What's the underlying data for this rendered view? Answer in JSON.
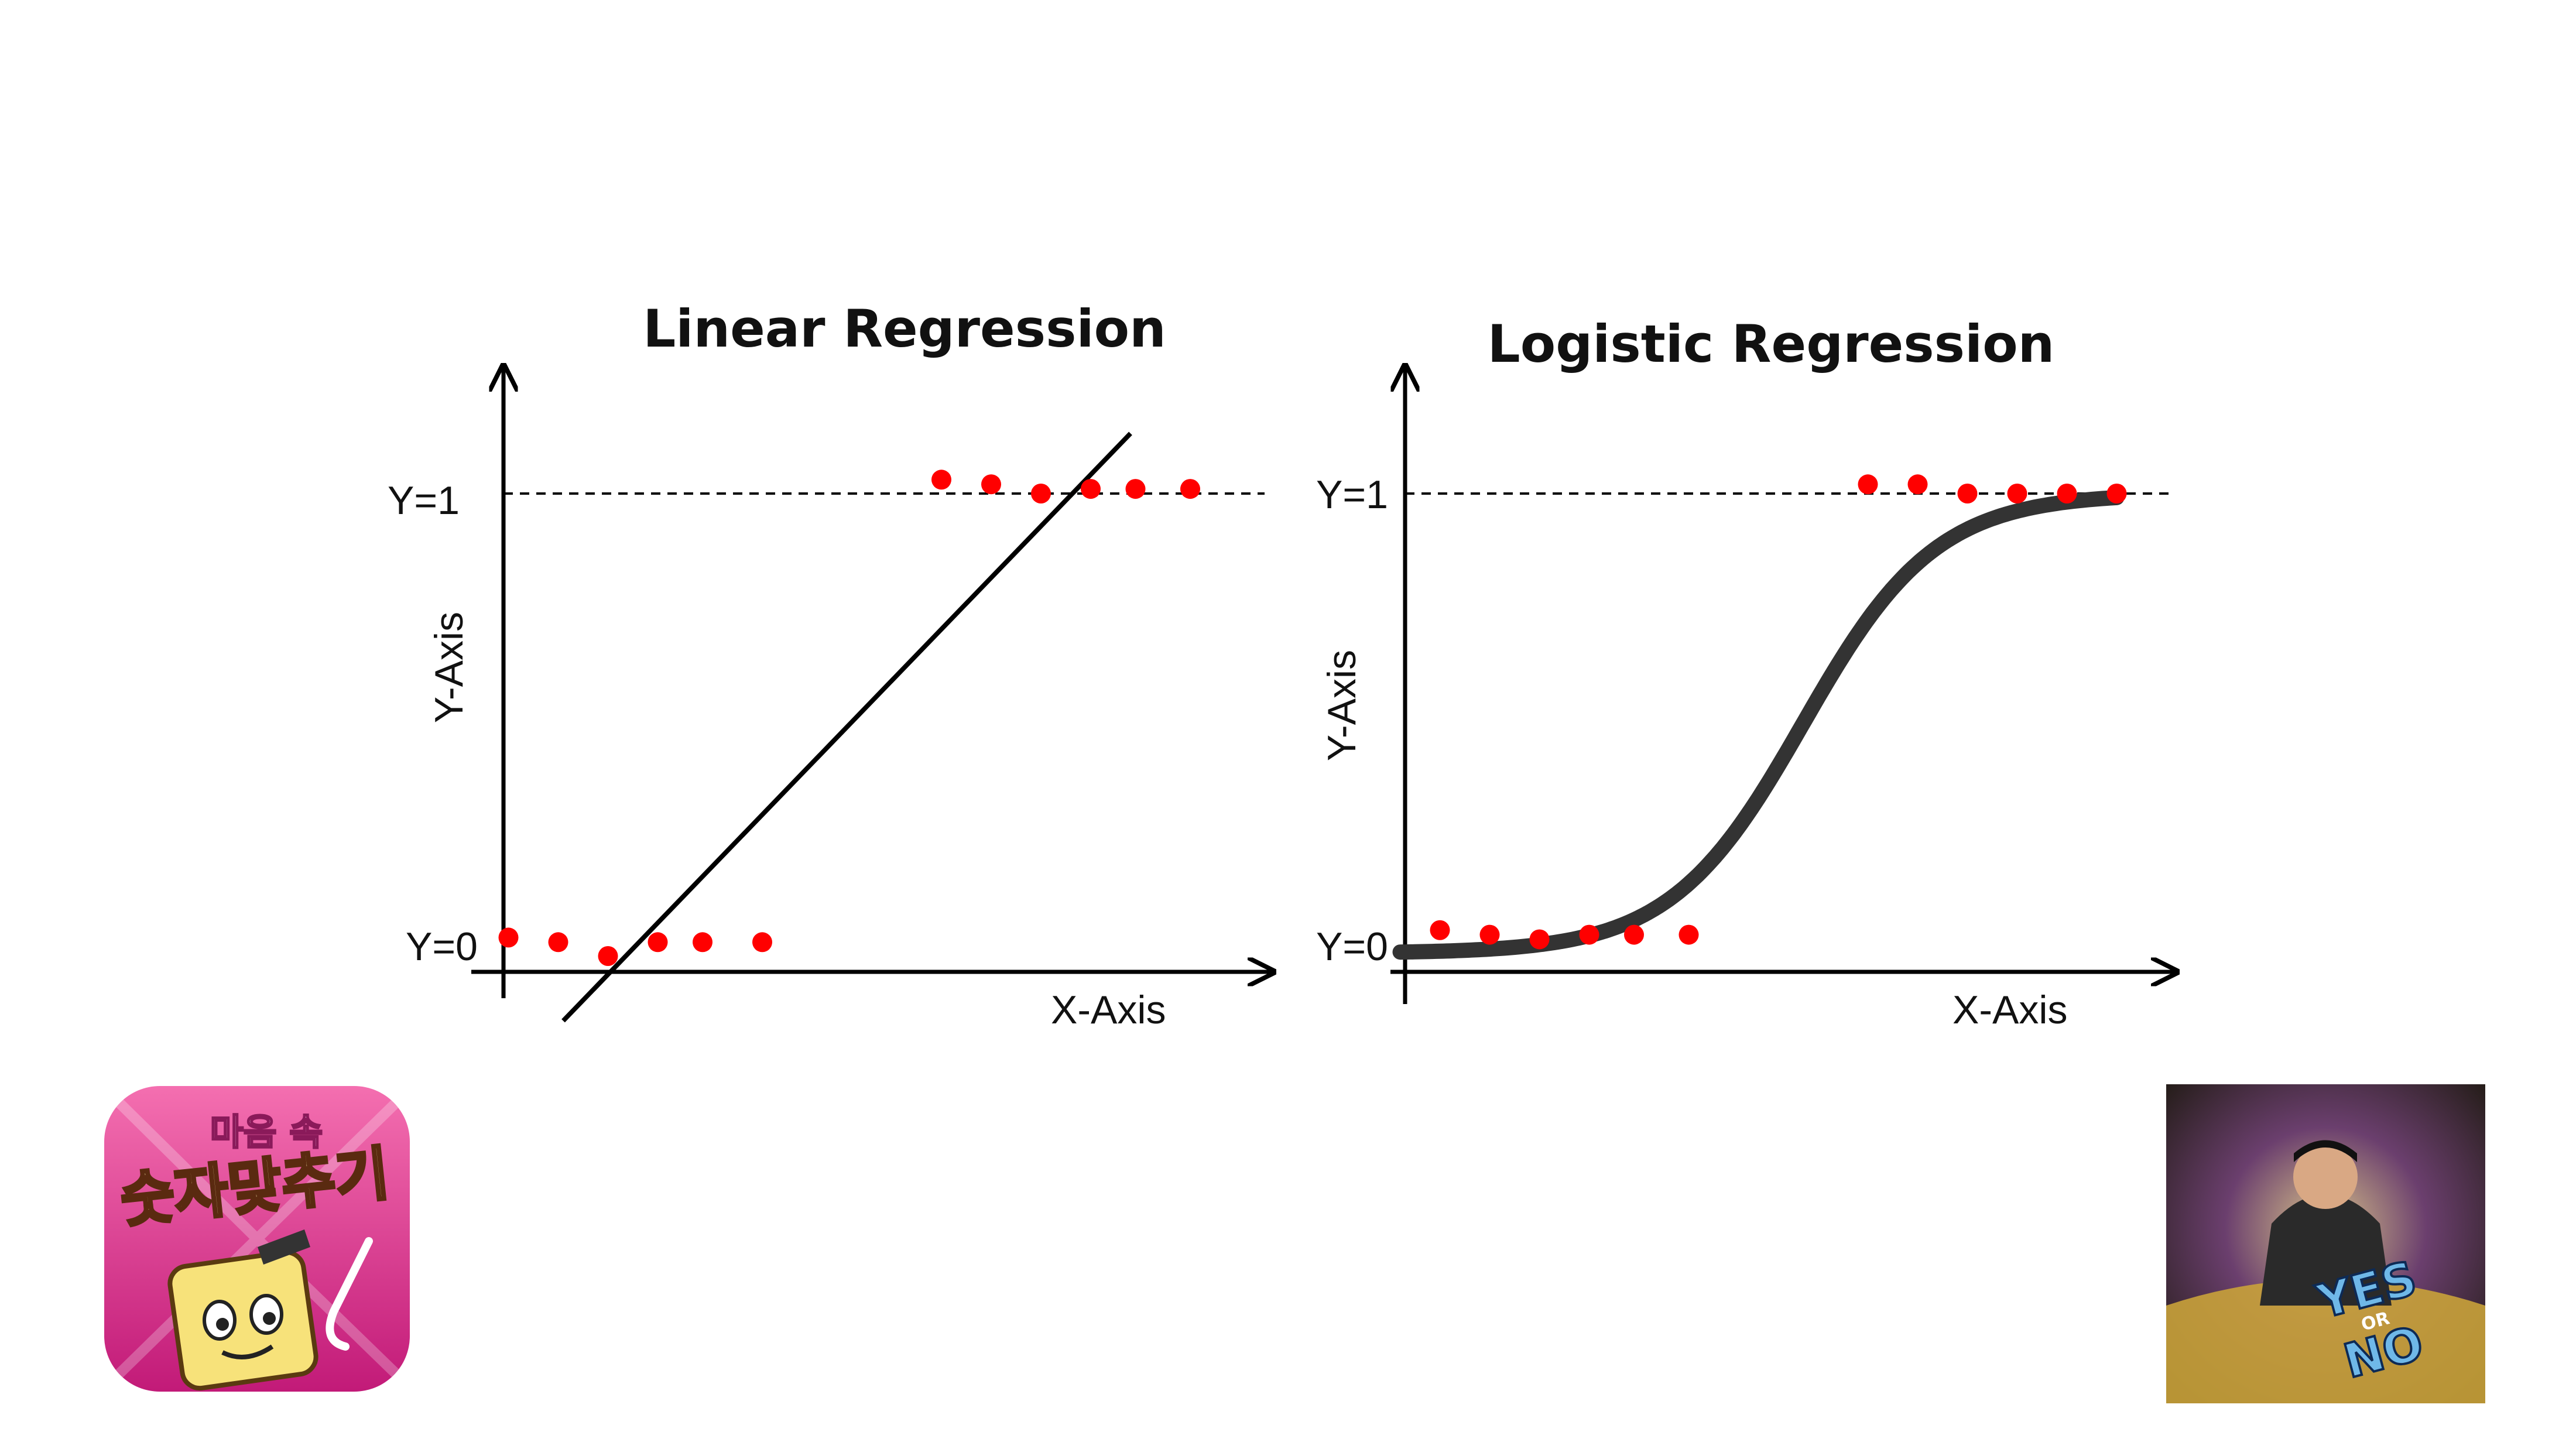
{
  "chart_data": [
    {
      "type": "scatter",
      "title": "Linear Regression",
      "xlabel": "X-Axis",
      "ylabel": "Y-Axis",
      "y_ticks": [
        "Y=0",
        "Y=1"
      ],
      "xlim": [
        0,
        16
      ],
      "ylim": [
        -0.2,
        1.3
      ],
      "grid": false,
      "reference_lines": [
        {
          "y": 1,
          "style": "dashed"
        }
      ],
      "series": [
        {
          "type": "scatter",
          "color": "#ff0000",
          "x": [
            0.1,
            1.1,
            2.1,
            3.1,
            4.0,
            5.2,
            8.8,
            9.8,
            10.8,
            11.8,
            12.7,
            13.8
          ],
          "y": [
            0.04,
            0.03,
            0.0,
            0.03,
            0.03,
            0.03,
            1.03,
            1.02,
            1.0,
            1.01,
            1.01,
            1.01
          ]
        },
        {
          "type": "line",
          "color": "#000000",
          "x": [
            1.2,
            12.6
          ],
          "y": [
            -0.14,
            1.13
          ]
        }
      ]
    },
    {
      "type": "scatter",
      "title": "Logistic Regression",
      "xlabel": "X-Axis",
      "ylabel": "Y-Axis",
      "y_ticks": [
        "Y=0",
        "Y=1"
      ],
      "xlim": [
        0,
        16
      ],
      "ylim": [
        -0.2,
        1.3
      ],
      "grid": false,
      "reference_lines": [
        {
          "y": 1,
          "style": "dashed"
        }
      ],
      "series": [
        {
          "type": "scatter",
          "color": "#ff0000",
          "x": [
            0.7,
            1.7,
            2.7,
            3.7,
            4.6,
            5.7,
            9.3,
            10.3,
            11.3,
            12.3,
            13.3,
            14.3
          ],
          "y": [
            0.05,
            0.04,
            0.03,
            0.04,
            0.04,
            0.04,
            1.02,
            1.02,
            1.0,
            1.0,
            1.0,
            1.0
          ]
        },
        {
          "type": "line",
          "name_hidden": true,
          "color": "#333333",
          "curve": "sigmoid",
          "x_start": -0.1,
          "x_end": 14.3,
          "midpoint": 8.0,
          "steepness": 0.75
        }
      ]
    }
  ],
  "logos": {
    "left_app_icon_text": [
      "마음 속",
      "숫자맞추기"
    ],
    "right_album_text": [
      "YES",
      "OR",
      "NO"
    ]
  }
}
